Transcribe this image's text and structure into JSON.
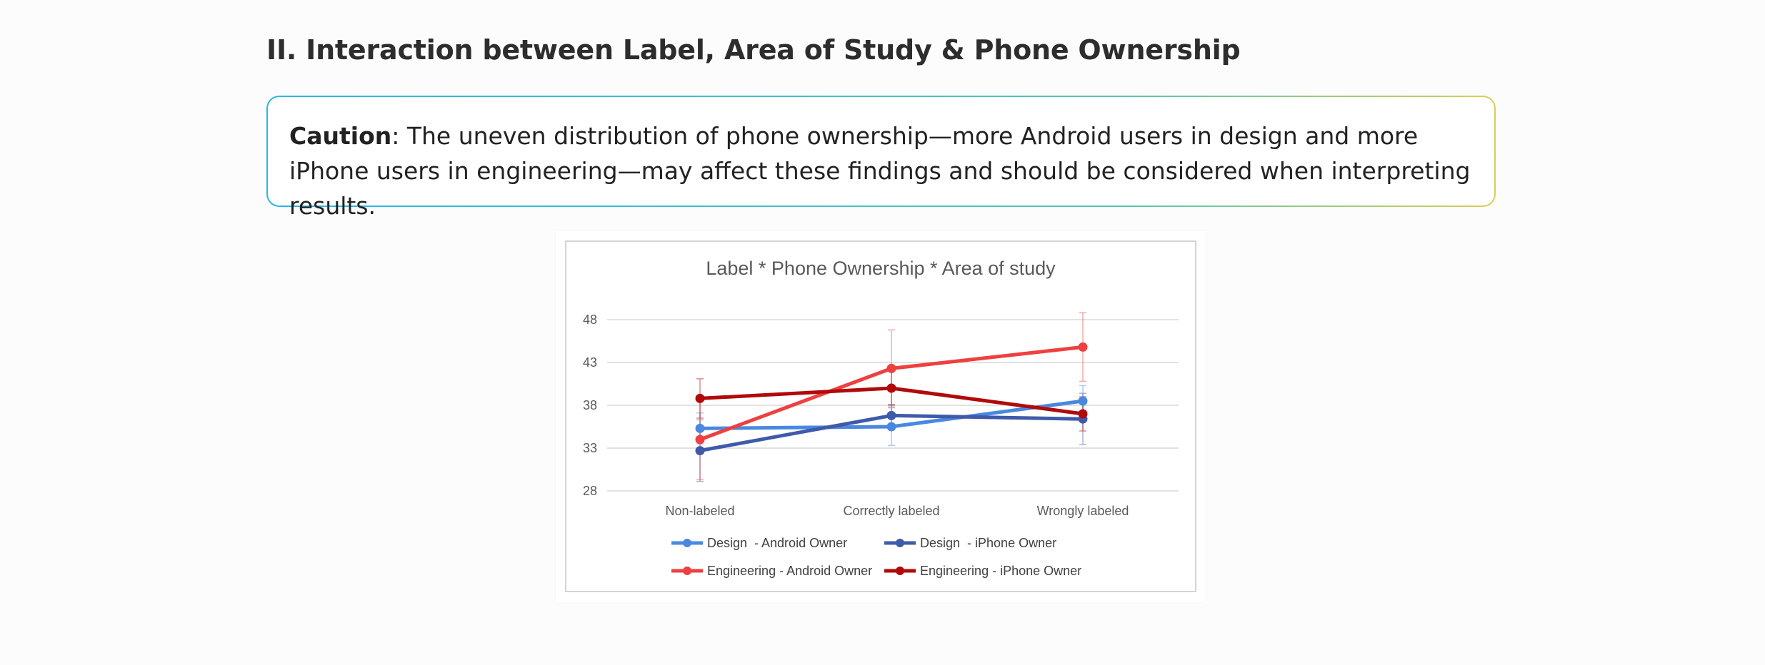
{
  "section": {
    "title": "II. Interaction between Label, Area of Study & Phone Ownership"
  },
  "caution": {
    "label": "Caution",
    "text": ": The uneven distribution of phone ownership—more Android users in design and more iPhone users in engineering—may affect these findings and should be considered when interpreting results."
  },
  "colors": {
    "design_android": "#4a88e0",
    "design_iphone": "#3f5aa8",
    "engineering_android": "#ee4040",
    "engineering_iphone": "#b00a0a"
  },
  "chart_data": {
    "type": "line",
    "title": "Label * Phone Ownership * Area of study",
    "xlabel": "",
    "ylabel": "",
    "categories": [
      "Non-labeled",
      "Correctly labeled",
      "Wrongly labeled"
    ],
    "yticks": [
      28,
      33,
      38,
      43,
      48
    ],
    "ylim": [
      28,
      48
    ],
    "grid": true,
    "legend": "bottom",
    "series": [
      {
        "name": "Design  - Android Owner",
        "color": "#4a88e0",
        "values": [
          35.3,
          35.5,
          38.5
        ],
        "err": [
          1.8,
          2.2,
          1.8
        ]
      },
      {
        "name": "Design  - iPhone Owner",
        "color": "#3f5aa8",
        "values": [
          32.7,
          36.8,
          36.4
        ],
        "err": [
          3.6,
          1.3,
          3.0
        ]
      },
      {
        "name": "Engineering - Android Owner",
        "color": "#ee4040",
        "values": [
          34.0,
          42.3,
          44.8
        ],
        "err": [
          4.7,
          4.5,
          4.0
        ]
      },
      {
        "name": "Engineering - iPhone Owner",
        "color": "#b00a0a",
        "values": [
          38.8,
          40.0,
          37.0
        ],
        "err": [
          2.3,
          2.0,
          2.0
        ]
      }
    ]
  }
}
